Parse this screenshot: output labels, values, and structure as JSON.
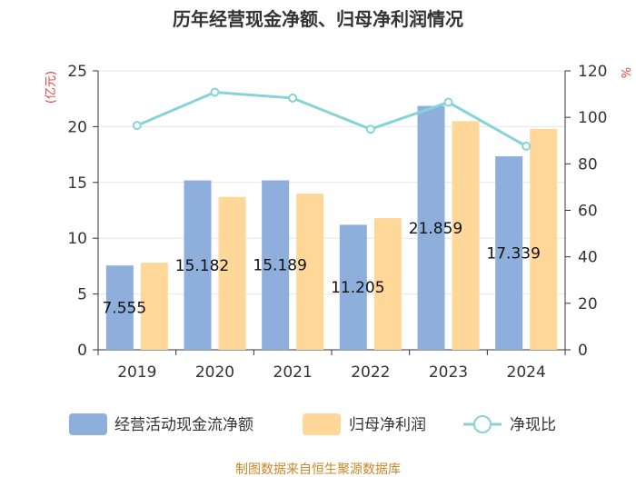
{
  "chart_data": {
    "type": "bar",
    "title": "历年经营现金净额、归母净利润情况",
    "categories": [
      "2019",
      "2020",
      "2021",
      "2022",
      "2023",
      "2024"
    ],
    "series": [
      {
        "name": "经营活动现金流净额",
        "kind": "bar",
        "axis": "left",
        "color": "#8eaedc",
        "values": [
          7.555,
          15.182,
          15.189,
          11.205,
          21.859,
          17.339
        ],
        "labels": [
          "7.555",
          "15.182",
          "15.189",
          "11.205",
          "21.859",
          "17.339"
        ]
      },
      {
        "name": "归母净利润",
        "kind": "bar",
        "axis": "left",
        "color": "#ffd899",
        "values": [
          7.8,
          13.7,
          14.0,
          11.8,
          20.5,
          19.8
        ]
      },
      {
        "name": "净现比",
        "kind": "line",
        "axis": "right",
        "color": "#86d4d8",
        "values": [
          96.5,
          110.8,
          108.3,
          94.9,
          106.5,
          87.6
        ]
      }
    ],
    "left_axis": {
      "unit": "(亿元)",
      "ylim": [
        0,
        25
      ],
      "ticks": [
        0,
        5,
        10,
        15,
        20,
        25
      ]
    },
    "right_axis": {
      "unit": "%",
      "ylim": [
        0,
        120
      ],
      "ticks": [
        0,
        20,
        40,
        60,
        80,
        100,
        120
      ]
    },
    "grid": true,
    "legend_position": "bottom"
  },
  "source_note": "制图数据来自恒生聚源数据库"
}
